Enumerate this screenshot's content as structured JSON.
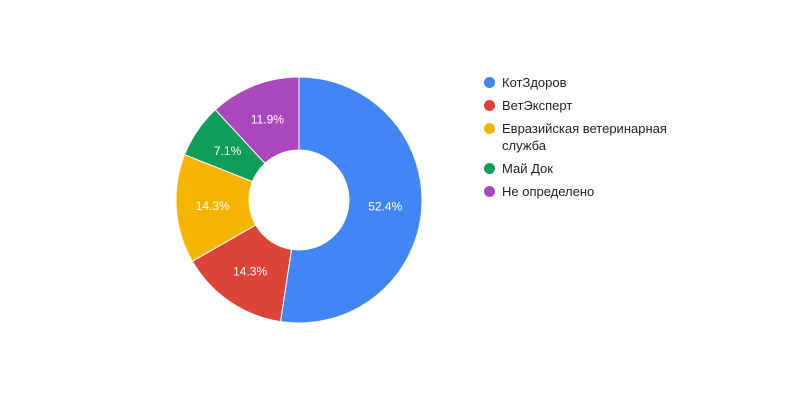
{
  "chart_data": {
    "type": "pie",
    "donut": true,
    "categories": [
      "КотЗдоров",
      "ВетЭксперт",
      "Евразийская ветеринарная служба",
      "Май Док",
      "Не определено"
    ],
    "values": [
      52.4,
      14.3,
      14.3,
      7.1,
      11.9
    ],
    "value_labels": [
      "52.4%",
      "14.3%",
      "14.3%",
      "7.1%",
      "11.9%"
    ],
    "colors": [
      "#4285f4",
      "#db4437",
      "#f4b400",
      "#0f9d58",
      "#ab47bc"
    ],
    "legend_position": "right"
  }
}
